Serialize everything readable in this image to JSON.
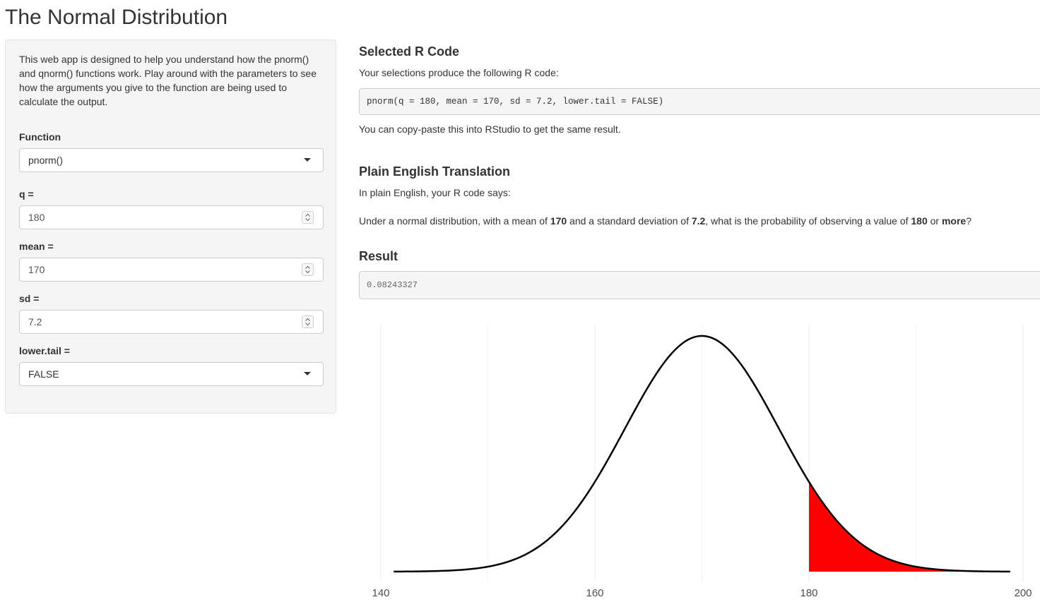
{
  "app": {
    "title": "The Normal Distribution"
  },
  "sidebar": {
    "intro": "This web app is designed to help you understand how the pnorm() and qnorm() functions work. Play around with the parameters to see how the arguments you give to the function are being used to calculate the output.",
    "function": {
      "label": "Function",
      "value": "pnorm()"
    },
    "q": {
      "label": "q =",
      "value": "180"
    },
    "mean": {
      "label": "mean =",
      "value": "170"
    },
    "sd": {
      "label": "sd =",
      "value": "7.2"
    },
    "lower_tail": {
      "label": "lower.tail =",
      "value": "FALSE"
    }
  },
  "main": {
    "code_heading": "Selected R Code",
    "code_intro": "Your selections produce the following R code:",
    "code": "pnorm(q = 180, mean = 170, sd = 7.2, lower.tail = FALSE)",
    "code_note": "You can copy-paste this into RStudio to get the same result.",
    "plain_heading": "Plain English Translation",
    "plain_intro": "In plain English, your R code says:",
    "plain": {
      "p1": "Under a normal distribution, with a mean of ",
      "mean": "170",
      "p2": " and a standard deviation of ",
      "sd": "7.2",
      "p3": ", what is the probability of observing a value of ",
      "q": "180",
      "p4": " or ",
      "direction": "more",
      "p5": "?"
    },
    "result_heading": "Result",
    "result": "0.08243327"
  },
  "colors": {
    "shade": "#ff0000",
    "curve": "#000000",
    "grid": "#ebebeb"
  },
  "chart_data": {
    "type": "area",
    "distribution": "normal",
    "mean": 170,
    "sd": 7.2,
    "x_range": [
      141.2,
      198.8
    ],
    "shaded_from": 180,
    "shaded_to": 198.8,
    "xlim": [
      140,
      200
    ],
    "x_ticks": [
      140,
      160,
      180,
      200
    ],
    "grid": true,
    "title": "",
    "xlabel": "",
    "ylabel": ""
  }
}
